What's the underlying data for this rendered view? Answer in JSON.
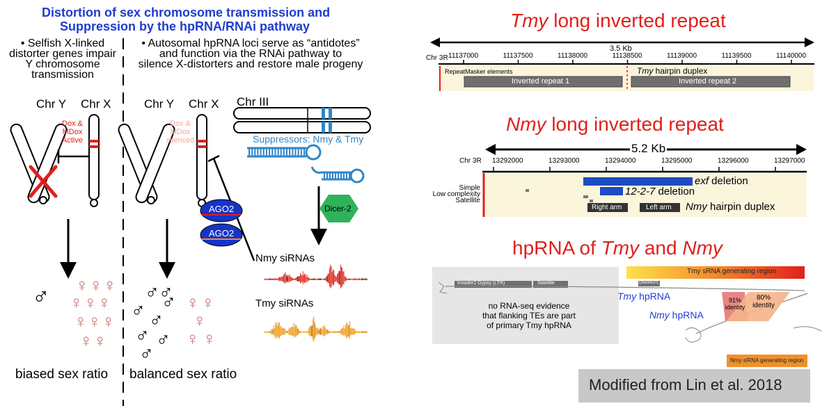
{
  "left": {
    "title_line1": "Distortion of sex chromosome transmission and",
    "title_line2": "Suppression by the hpRNA/RNAi pathway",
    "col1_bullet": [
      "• Selfish X-linked",
      "distorter genes impair",
      "Y chromosome",
      "transmission"
    ],
    "col2_bullet": [
      "• Autosomal hpRNA loci serve as “antidotes”",
      "and function via the RNAi pathway to",
      "silence X-distorters and restore male progeny"
    ],
    "chr_y": "Chr Y",
    "chr_x": "Chr X",
    "chr_iii": "Chr III",
    "dox_active": [
      "Dox &",
      "MDox",
      "Active"
    ],
    "dox_silenced": [
      "Dox &",
      "MDox",
      "silenced"
    ],
    "suppressors": "Suppressors: Nmy & Tmy",
    "ago2": "AGO2",
    "dicer2": "Dicer-2",
    "nmy_sirnas": "Nmy siRNAs",
    "tmy_sirnas": "Tmy siRNAs",
    "biased": "biased sex ratio",
    "balanced": "balanced sex ratio",
    "male_symbol": "♂",
    "female_symbol": "♀"
  },
  "tmy_panel": {
    "title_italic": "Tmy",
    "title_rest": " long inverted repeat",
    "scale_label": "3.5 Kb",
    "chr_label": "Chr 3R",
    "ticks": [
      "11137000",
      "11137500",
      "11138000",
      "11138500",
      "11139000",
      "11139500",
      "11140000"
    ],
    "track_label": "RepeatMasker elements",
    "duplex_italic": "Tmy",
    "duplex_rest": " hairpin duplex",
    "ir1": "Inverted repeat 1",
    "ir2": "Inverted repeat 2"
  },
  "nmy_panel": {
    "title_italic": "Nmy",
    "title_rest": " long inverted repeat",
    "scale_label": "5.2 Kb",
    "chr_label": "Chr 3R",
    "ticks": [
      "13292000",
      "13293000",
      "13294000",
      "13295000",
      "13296000",
      "13297000"
    ],
    "side_labels": [
      "Simple",
      "Low complexity",
      "Satellite"
    ],
    "exf_italic": "exf",
    "exf_rest": " deletion",
    "d1227_italic": "12-2-7",
    "d1227_rest": " deletion",
    "right_arm": "Right arm",
    "left_arm": "Left arm",
    "duplex_italic": "Nmy",
    "duplex_rest": " hairpin duplex"
  },
  "hprna_panel": {
    "title_a": "hpRNA of ",
    "title_tmy": "Tmy",
    "title_and": " and ",
    "title_nmy": "Nmy",
    "te1": "Invader2 Gypsy (LTR)",
    "te2": "Satellite",
    "te3": "DNAREP1",
    "evidence": [
      "no RNA-seq evidence",
      "that flanking TEs are part",
      "of primary Tmy hpRNA"
    ],
    "tmy_srna_region": "Tmy sRNA generating region",
    "tmy_hprna_italic": "Tmy",
    "nmy_hprna_italic": "Nmy",
    "hprna_word": " hpRNA",
    "identity91": [
      "91%",
      "identity"
    ],
    "identity80": [
      "80%",
      "identity"
    ],
    "nmy_sirna_region": "Nmy siRNA generating region"
  },
  "credit": "Modified from Lin et al. 2018",
  "colors": {
    "title_blue": "#1f3ccf",
    "red": "#e0201b",
    "pink": "#c9716a",
    "suppressor_blue": "#2e86c8",
    "ago_blue": "#1734c8",
    "dicer_green": "#2fb35a",
    "track_bg": "#fbf5dc",
    "credit_bg": "#c8c8c8"
  }
}
